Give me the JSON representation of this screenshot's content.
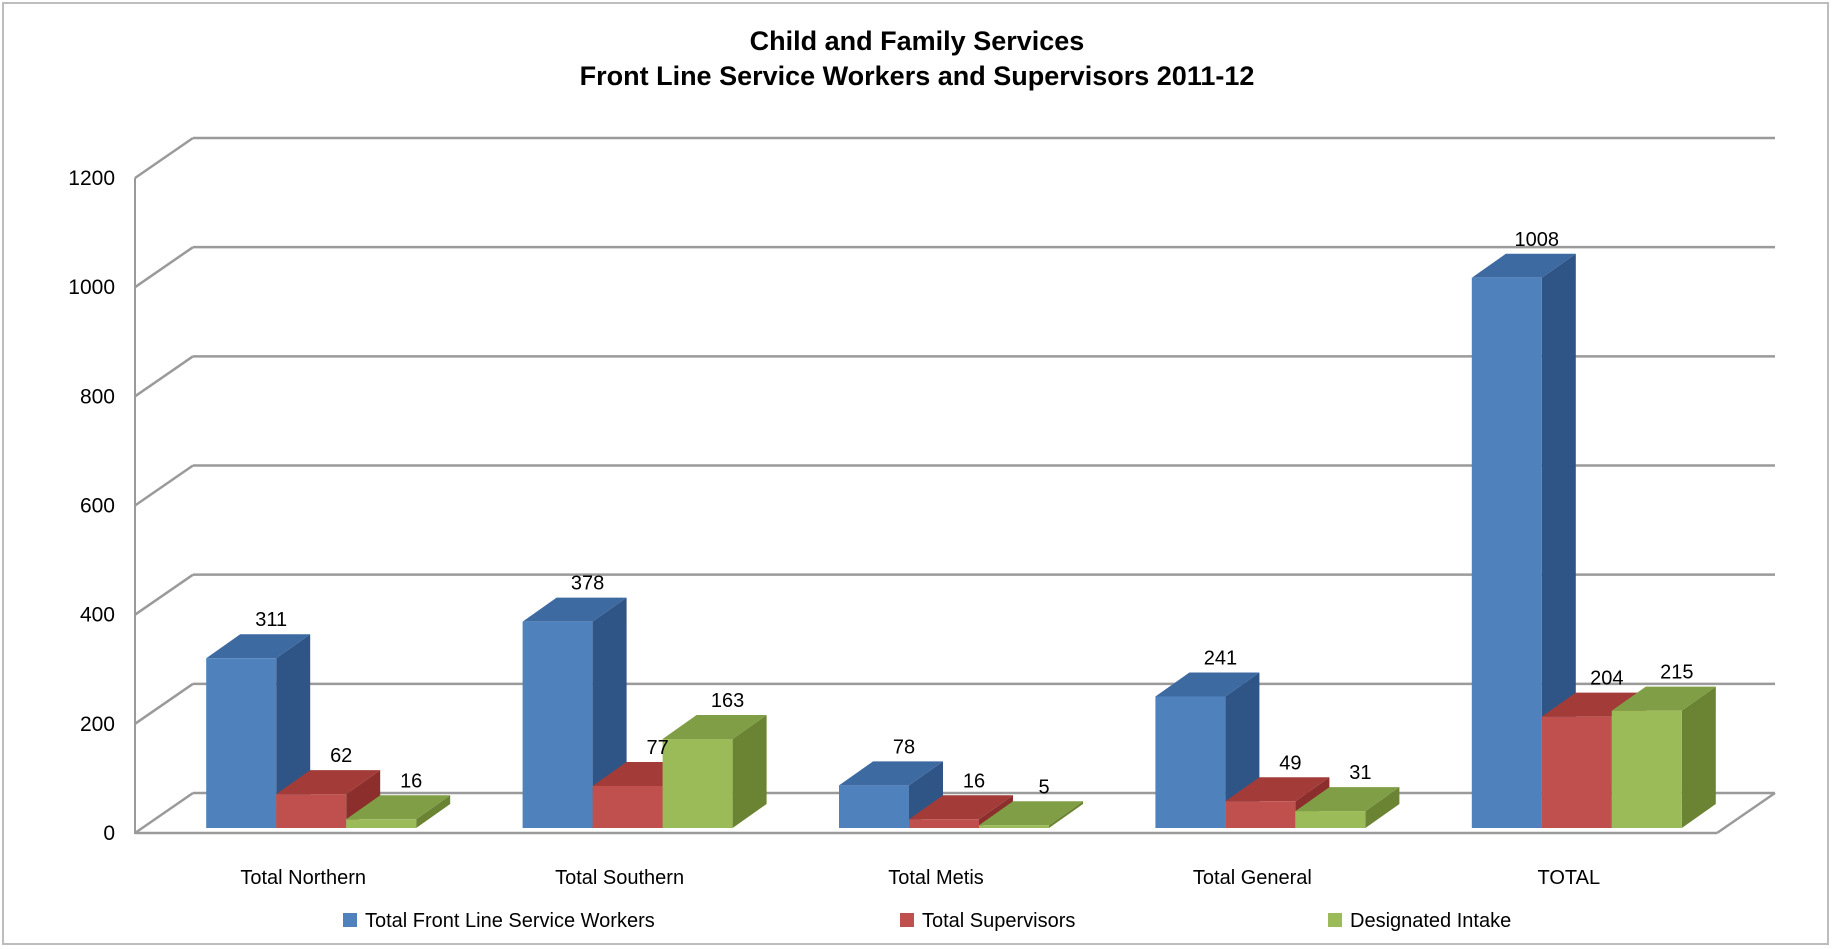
{
  "chart_data": {
    "type": "bar",
    "title": "Child and Family Services",
    "subtitle": "Front Line Service Workers and Supervisors 2011-12",
    "categories": [
      "Total Northern",
      "Total Southern",
      "Total Metis",
      "Total General",
      "TOTAL"
    ],
    "series": [
      {
        "name": "Total Front Line Service Workers",
        "values": [
          311,
          378,
          78,
          241,
          1008
        ],
        "color": "#4f81bd",
        "side_color": "#2f5486",
        "top_color": "#3e6aa2"
      },
      {
        "name": "Total Supervisors",
        "values": [
          62,
          77,
          16,
          49,
          204
        ],
        "color": "#c0504d",
        "side_color": "#8b2e2c",
        "top_color": "#a33c39"
      },
      {
        "name": "Designated Intake",
        "values": [
          16,
          163,
          5,
          31,
          215
        ],
        "color": "#9bbb59",
        "side_color": "#6a8433",
        "top_color": "#809e45"
      }
    ],
    "yticks": [
      0,
      200,
      400,
      600,
      800,
      1000,
      1200
    ],
    "ylim": [
      0,
      1200
    ],
    "grid": true,
    "style": "3d-clustered-column",
    "legend_position": "bottom",
    "xlabel": "",
    "ylabel": ""
  }
}
